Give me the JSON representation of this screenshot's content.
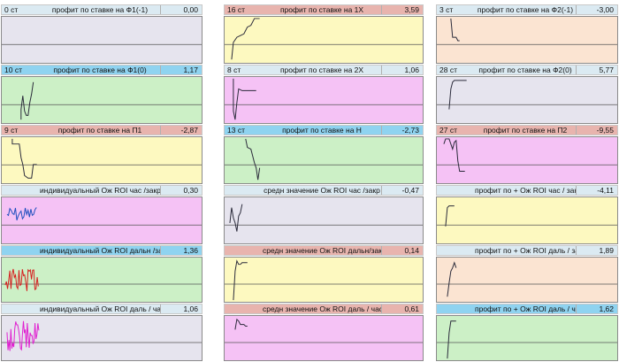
{
  "colors": {
    "hdr_blue": "#dbeaf2",
    "hdr_cyan": "#8fd3f0",
    "hdr_pink": "#e8b4ae",
    "plot_lavender": "#e6e4ee",
    "plot_green": "#ccf0c6",
    "plot_yellow": "#fdf9c0",
    "plot_magenta": "#f5c2f5",
    "plot_peach": "#fbe4d2"
  },
  "panels": [
    {
      "st": "0 ст",
      "title": "профит по ставке на Ф1(-1)",
      "value": "0,00",
      "hdr": "hdr_blue",
      "plot": "plot_lavender",
      "line": "#2a2a3a"
    },
    {
      "st": "10 ст",
      "title": "профит по ставке на Ф1(0)",
      "value": "1,17",
      "hdr": "hdr_cyan",
      "plot": "plot_green",
      "line": "#2a2a3a"
    },
    {
      "st": "9 ст",
      "title": "профит по ставке на П1",
      "value": "-2,87",
      "hdr": "hdr_pink",
      "plot": "plot_yellow",
      "line": "#2a2a3a"
    },
    {
      "st": "",
      "title": "индивидуальный Ож ROI час /закр",
      "value": "0,30",
      "hdr": "hdr_blue",
      "plot": "plot_magenta",
      "line": "#1f4fbf"
    },
    {
      "st": "",
      "title": "индивидуальный Ож ROI дальн /закр",
      "value": "1,36",
      "hdr": "hdr_cyan",
      "plot": "plot_green",
      "line": "#d62020"
    },
    {
      "st": "",
      "title": "индивидуальный Ож ROI даль / час",
      "value": "1,06",
      "hdr": "hdr_blue",
      "plot": "plot_lavender",
      "line": "#e020d0"
    },
    {
      "st": "16 ст",
      "title": "профит по ставке на 1Х",
      "value": "3,59",
      "hdr": "hdr_pink",
      "plot": "plot_yellow",
      "line": "#2a2a3a"
    },
    {
      "st": "8 ст",
      "title": "профит по ставке на 2Х",
      "value": "1,06",
      "hdr": "hdr_blue",
      "plot": "plot_magenta",
      "line": "#2a2a3a"
    },
    {
      "st": "13 ст",
      "title": "профит по ставке на Н",
      "value": "-2,73",
      "hdr": "hdr_cyan",
      "plot": "plot_green",
      "line": "#2a2a3a"
    },
    {
      "st": "",
      "title": "средн значение  Ож ROI час /закр",
      "value": "-0,47",
      "hdr": "hdr_blue",
      "plot": "plot_lavender",
      "line": "#2a2a3a"
    },
    {
      "st": "",
      "title": "средн значение  Ож ROI дальн/закр",
      "value": "0,14",
      "hdr": "hdr_pink",
      "plot": "plot_yellow",
      "line": "#2a2a3a"
    },
    {
      "st": "",
      "title": "средн значение  Ож ROI даль / час",
      "value": "0,61",
      "hdr": "hdr_pink",
      "plot": "plot_magenta",
      "line": "#2a2a3a"
    },
    {
      "st": "3 ст",
      "title": "профит по ставке на Ф2(-1)",
      "value": "-3,00",
      "hdr": "hdr_blue",
      "plot": "plot_peach",
      "line": "#2a2a3a"
    },
    {
      "st": "28 ст",
      "title": "профит по ставке на Ф2(0)",
      "value": "5,77",
      "hdr": "hdr_blue",
      "plot": "plot_lavender",
      "line": "#2a2a3a"
    },
    {
      "st": "27 ст",
      "title": "профит по ставке на П2",
      "value": "-9,55",
      "hdr": "hdr_pink",
      "plot": "plot_magenta",
      "line": "#2a2a3a"
    },
    {
      "st": "",
      "title": "профит по + Ож ROI час / закр",
      "value": "-4,11",
      "hdr": "hdr_blue",
      "plot": "plot_yellow",
      "line": "#2a2a3a"
    },
    {
      "st": "",
      "title": "профит по + Ож ROI даль / закр",
      "value": "1,89",
      "hdr": "hdr_blue",
      "plot": "plot_peach",
      "line": "#2a2a3a"
    },
    {
      "st": "",
      "title": "профит по + Ож ROI даль / час",
      "value": "1,62",
      "hdr": "hdr_cyan",
      "plot": "plot_green",
      "line": "#2a2a3a"
    }
  ]
}
